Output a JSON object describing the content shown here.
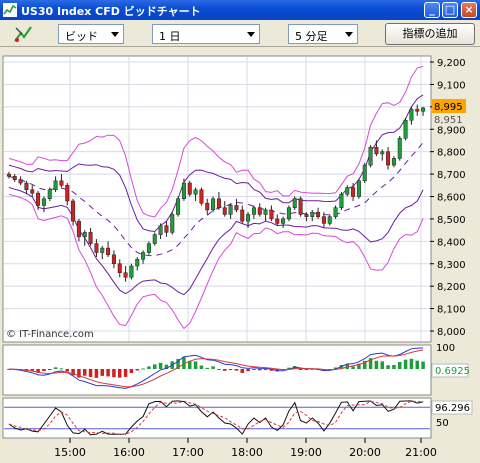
{
  "window": {
    "title": "US30 Index CFD ビッドチャート",
    "controls": {
      "minimize": "_",
      "maximize": "□",
      "close": "×"
    }
  },
  "toolbar": {
    "tool_icon": "chart-tool-icon",
    "price_type": "ビッド",
    "bar_count": "1 日",
    "timeframe": "5 分足",
    "indicator_button": "指標の追加"
  },
  "colors": {
    "up_candle": "#1E9E3A",
    "down_candle": "#CC2222",
    "inner_band": "#6A1E9E",
    "outer_band": "#D84AD8",
    "ma_dash": "#6A1E9E",
    "current_price_bg": "#FFA500"
  },
  "chart_data": [
    {
      "type": "candlestick",
      "watermark": "© IT-Finance.com",
      "current_price": "8,995",
      "secondary_price": "8,951",
      "y_ticks": [
        "9,200",
        "9,100",
        "9,000",
        "8,900",
        "8,800",
        "8,700",
        "8,600",
        "8,500",
        "8,400",
        "8,300",
        "8,200",
        "8,100",
        "8,000"
      ],
      "ylim": [
        7990,
        9230
      ],
      "x_ticks": [
        "15:00",
        "16:00",
        "17:00",
        "18:00",
        "19:00",
        "20:00",
        "21:00"
      ],
      "grid": true,
      "candles_ohlc": [
        [
          8700,
          8710,
          8680,
          8690
        ],
        [
          8690,
          8700,
          8665,
          8675
        ],
        [
          8675,
          8690,
          8650,
          8660
        ],
        [
          8660,
          8670,
          8610,
          8630
        ],
        [
          8630,
          8650,
          8600,
          8615
        ],
        [
          8615,
          8625,
          8540,
          8560
        ],
        [
          8560,
          8600,
          8530,
          8590
        ],
        [
          8590,
          8640,
          8580,
          8630
        ],
        [
          8630,
          8690,
          8620,
          8670
        ],
        [
          8670,
          8700,
          8640,
          8650
        ],
        [
          8650,
          8660,
          8560,
          8580
        ],
        [
          8580,
          8590,
          8470,
          8490
        ],
        [
          8490,
          8500,
          8400,
          8420
        ],
        [
          8420,
          8450,
          8380,
          8440
        ],
        [
          8440,
          8460,
          8380,
          8390
        ],
        [
          8390,
          8410,
          8330,
          8350
        ],
        [
          8350,
          8380,
          8320,
          8370
        ],
        [
          8370,
          8400,
          8330,
          8340
        ],
        [
          8340,
          8360,
          8280,
          8300
        ],
        [
          8300,
          8320,
          8240,
          8260
        ],
        [
          8260,
          8290,
          8220,
          8240
        ],
        [
          8240,
          8300,
          8230,
          8290
        ],
        [
          8290,
          8330,
          8270,
          8320
        ],
        [
          8320,
          8360,
          8300,
          8350
        ],
        [
          8350,
          8400,
          8340,
          8390
        ],
        [
          8390,
          8440,
          8380,
          8430
        ],
        [
          8430,
          8480,
          8410,
          8470
        ],
        [
          8470,
          8490,
          8420,
          8440
        ],
        [
          8440,
          8530,
          8430,
          8520
        ],
        [
          8520,
          8600,
          8510,
          8590
        ],
        [
          8590,
          8680,
          8580,
          8660
        ],
        [
          8660,
          8670,
          8600,
          8610
        ],
        [
          8610,
          8640,
          8580,
          8630
        ],
        [
          8630,
          8640,
          8560,
          8570
        ],
        [
          8570,
          8590,
          8520,
          8540
        ],
        [
          8540,
          8600,
          8530,
          8590
        ],
        [
          8590,
          8620,
          8540,
          8550
        ],
        [
          8550,
          8580,
          8510,
          8520
        ],
        [
          8520,
          8570,
          8500,
          8560
        ],
        [
          8560,
          8590,
          8530,
          8540
        ],
        [
          8540,
          8560,
          8480,
          8490
        ],
        [
          8490,
          8530,
          8460,
          8520
        ],
        [
          8520,
          8560,
          8500,
          8550
        ],
        [
          8550,
          8570,
          8510,
          8520
        ],
        [
          8520,
          8550,
          8490,
          8540
        ],
        [
          8540,
          8560,
          8490,
          8500
        ],
        [
          8500,
          8520,
          8470,
          8480
        ],
        [
          8480,
          8510,
          8460,
          8500
        ],
        [
          8500,
          8560,
          8490,
          8550
        ],
        [
          8550,
          8600,
          8540,
          8590
        ],
        [
          8590,
          8600,
          8510,
          8520
        ],
        [
          8520,
          8530,
          8490,
          8510
        ],
        [
          8510,
          8540,
          8490,
          8530
        ],
        [
          8530,
          8550,
          8500,
          8510
        ],
        [
          8510,
          8530,
          8460,
          8480
        ],
        [
          8480,
          8520,
          8470,
          8510
        ],
        [
          8510,
          8560,
          8500,
          8550
        ],
        [
          8550,
          8620,
          8540,
          8610
        ],
        [
          8610,
          8650,
          8600,
          8640
        ],
        [
          8640,
          8660,
          8580,
          8600
        ],
        [
          8600,
          8680,
          8590,
          8670
        ],
        [
          8670,
          8750,
          8660,
          8740
        ],
        [
          8740,
          8830,
          8730,
          8820
        ],
        [
          8820,
          8850,
          8780,
          8790
        ],
        [
          8790,
          8810,
          8760,
          8800
        ],
        [
          8800,
          8820,
          8720,
          8740
        ],
        [
          8740,
          8780,
          8730,
          8770
        ],
        [
          8770,
          8870,
          8760,
          8860
        ],
        [
          8860,
          8950,
          8850,
          8940
        ],
        [
          8940,
          9000,
          8920,
          8990
        ],
        [
          8990,
          9010,
          8960,
          8980
        ],
        [
          8980,
          9000,
          8960,
          8995
        ]
      ]
    },
    {
      "type": "line",
      "name": "oscillator",
      "value_label": "0.6925",
      "y_ticks": [
        "100"
      ]
    },
    {
      "type": "line",
      "name": "stochastic",
      "value_label": "96.296",
      "y_ticks": [
        "50"
      ]
    }
  ]
}
